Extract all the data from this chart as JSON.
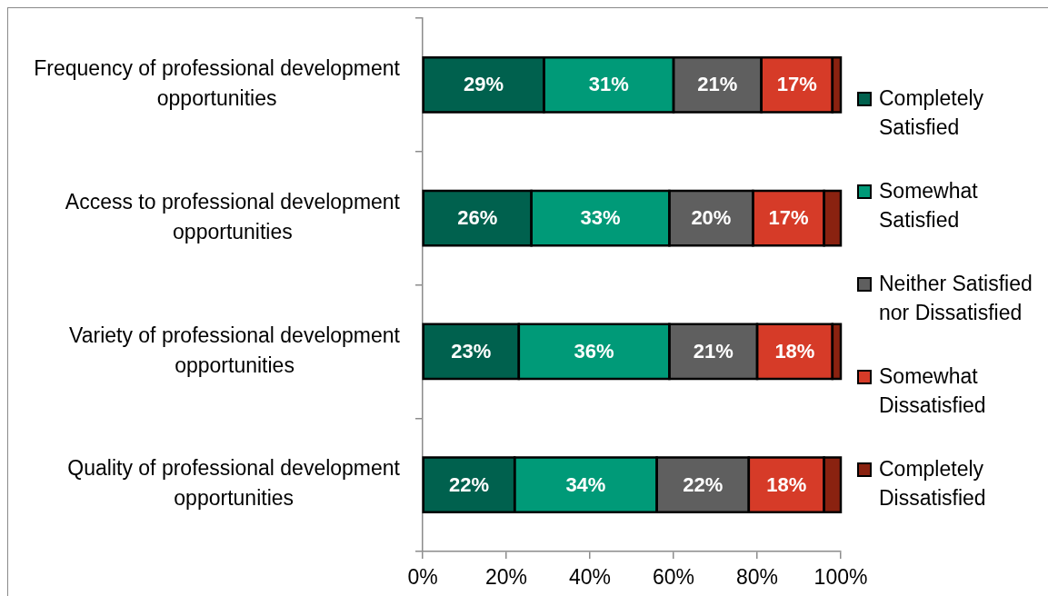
{
  "chart_data": {
    "type": "bar",
    "orientation": "horizontal",
    "stacked": true,
    "categories": [
      "Frequency of professional development opportunities",
      "Access to professional development opportunities",
      "Variety of professional development opportunities",
      "Quality of professional development opportunities"
    ],
    "series": [
      {
        "name": "Completely Satisfied",
        "color": "#00614e",
        "values": [
          29,
          26,
          23,
          22
        ],
        "value_labels": [
          "29%",
          "26%",
          "23%",
          "22%"
        ]
      },
      {
        "name": "Somewhat Satisfied",
        "color": "#009a78",
        "values": [
          31,
          33,
          36,
          34
        ],
        "value_labels": [
          "31%",
          "33%",
          "36%",
          "34%"
        ]
      },
      {
        "name": "Neither Satisfied nor Dissatisfied",
        "color": "#5f5f5f",
        "values": [
          21,
          20,
          21,
          22
        ],
        "value_labels": [
          "21%",
          "20%",
          "21%",
          "22%"
        ]
      },
      {
        "name": "Somewhat Dissatisfied",
        "color": "#d63b28",
        "values": [
          17,
          17,
          18,
          18
        ],
        "value_labels": [
          "17%",
          "17%",
          "18%",
          "18%"
        ]
      },
      {
        "name": "Completely Dissatisfied",
        "color": "#8a2210",
        "values": [
          2,
          4,
          2,
          4
        ]
      }
    ],
    "xlim": [
      0,
      100
    ],
    "xticks": [
      {
        "value": 0,
        "label": "0%"
      },
      {
        "value": 20,
        "label": "20%"
      },
      {
        "value": 40,
        "label": "40%"
      },
      {
        "value": 60,
        "label": "60%"
      },
      {
        "value": 80,
        "label": "80%"
      },
      {
        "value": 100,
        "label": "100%"
      }
    ],
    "grid": false,
    "legend": "right"
  }
}
